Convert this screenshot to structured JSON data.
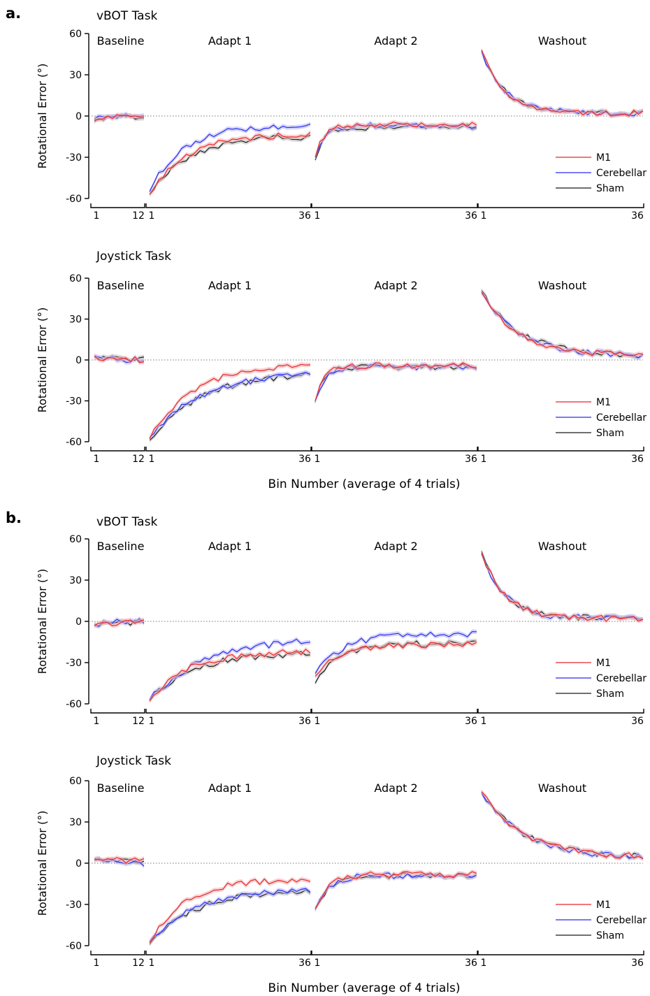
{
  "panels": [
    {
      "letter": "a.",
      "subplots": [
        {
          "title": "vBOT Task",
          "ylabel": "Rotational Error (°)",
          "segments": [
            "Baseline",
            "Adapt 1",
            "Adapt 2",
            "Washout"
          ],
          "legend": [
            "M1",
            "Cerebellar",
            "Sham"
          ]
        },
        {
          "title": "Joystick Task",
          "ylabel": "Rotational Error (°)",
          "segments": [
            "Baseline",
            "Adapt 1",
            "Adapt 2",
            "Washout"
          ],
          "legend": [
            "M1",
            "Cerebellar",
            "Sham"
          ]
        }
      ],
      "xlabel": "Bin Number (average of 4 trials)"
    },
    {
      "letter": "b.",
      "subplots": [
        {
          "title": "vBOT Task",
          "ylabel": "Rotational Error (°)",
          "segments": [
            "Baseline",
            "Adapt 1",
            "Adapt 2",
            "Washout"
          ],
          "legend": [
            "M1",
            "Cerebellar",
            "Sham"
          ]
        },
        {
          "title": "Joystick Task",
          "ylabel": "Rotational Error (°)",
          "segments": [
            "Baseline",
            "Adapt 1",
            "Adapt 2",
            "Washout"
          ],
          "legend": [
            "M1",
            "Cerebellar",
            "Sham"
          ]
        }
      ],
      "xlabel": "Bin Number (average of 4 trials)"
    }
  ],
  "chart_data": [
    {
      "type": "line",
      "title": "vBOT Task",
      "panel": "a.",
      "ylabel": "Rotational Error (°)",
      "ylim": [
        -60,
        60
      ],
      "yticks": [
        -60,
        -30,
        0,
        30,
        60
      ],
      "xlabel": "Bin Number (average of 4 trials)",
      "segments": [
        {
          "label": "Baseline",
          "x_range": [
            1,
            12
          ],
          "x_ticks": [
            1,
            12
          ],
          "series": [
            {
              "name": "M1",
              "y_start": -3,
              "y_end": 0,
              "tau": 2
            },
            {
              "name": "Cerebellar",
              "y_start": -2,
              "y_end": 0,
              "tau": 2
            },
            {
              "name": "Sham",
              "y_start": -4,
              "y_end": 0,
              "tau": 2
            }
          ]
        },
        {
          "label": "Adapt 1",
          "x_range": [
            1,
            36
          ],
          "x_ticks": [
            1,
            36
          ],
          "series": [
            {
              "name": "M1",
              "y_start": -57,
              "y_end": -13,
              "tau": 8
            },
            {
              "name": "Cerebellar",
              "y_start": -55,
              "y_end": -7,
              "tau": 7
            },
            {
              "name": "Sham",
              "y_start": -57,
              "y_end": -15,
              "tau": 8
            }
          ]
        },
        {
          "label": "Adapt 2",
          "x_range": [
            1,
            36
          ],
          "x_ticks": [
            1,
            36
          ],
          "series": [
            {
              "name": "M1",
              "y_start": -30,
              "y_end": -6,
              "tau": 2
            },
            {
              "name": "Cerebellar",
              "y_start": -30,
              "y_end": -7,
              "tau": 2
            },
            {
              "name": "Sham",
              "y_start": -32,
              "y_end": -8,
              "tau": 2
            }
          ]
        },
        {
          "label": "Washout",
          "x_range": [
            1,
            36
          ],
          "x_ticks": [
            1,
            36
          ],
          "series": [
            {
              "name": "M1",
              "y_start": 48,
              "y_end": 2,
              "tau": 5
            },
            {
              "name": "Cerebellar",
              "y_start": 47,
              "y_end": 2,
              "tau": 5
            },
            {
              "name": "Sham",
              "y_start": 48,
              "y_end": 2,
              "tau": 5
            }
          ]
        }
      ]
    },
    {
      "type": "line",
      "title": "Joystick Task",
      "panel": "a.",
      "ylabel": "Rotational Error (°)",
      "ylim": [
        -60,
        60
      ],
      "yticks": [
        -60,
        -30,
        0,
        30,
        60
      ],
      "xlabel": "Bin Number (average of 4 trials)",
      "segments": [
        {
          "label": "Baseline",
          "x_range": [
            1,
            12
          ],
          "x_ticks": [
            1,
            12
          ],
          "series": [
            {
              "name": "M1",
              "y_start": 3,
              "y_end": 0,
              "tau": 3
            },
            {
              "name": "Cerebellar",
              "y_start": 3,
              "y_end": 0,
              "tau": 3
            },
            {
              "name": "Sham",
              "y_start": 2,
              "y_end": 0,
              "tau": 3
            }
          ]
        },
        {
          "label": "Adapt 1",
          "x_range": [
            1,
            36
          ],
          "x_ticks": [
            1,
            36
          ],
          "series": [
            {
              "name": "M1",
              "y_start": -58,
              "y_end": -3,
              "tau": 9
            },
            {
              "name": "Cerebellar",
              "y_start": -57,
              "y_end": -9,
              "tau": 11
            },
            {
              "name": "Sham",
              "y_start": -59,
              "y_end": -9,
              "tau": 11
            }
          ]
        },
        {
          "label": "Adapt 2",
          "x_range": [
            1,
            36
          ],
          "x_ticks": [
            1,
            36
          ],
          "series": [
            {
              "name": "M1",
              "y_start": -30,
              "y_end": -4,
              "tau": 2
            },
            {
              "name": "Cerebellar",
              "y_start": -30,
              "y_end": -5,
              "tau": 2
            },
            {
              "name": "Sham",
              "y_start": -31,
              "y_end": -5,
              "tau": 2
            }
          ]
        },
        {
          "label": "Washout",
          "x_range": [
            1,
            36
          ],
          "x_ticks": [
            1,
            36
          ],
          "series": [
            {
              "name": "M1",
              "y_start": 50,
              "y_end": 3,
              "tau": 8
            },
            {
              "name": "Cerebellar",
              "y_start": 49,
              "y_end": 3,
              "tau": 8
            },
            {
              "name": "Sham",
              "y_start": 51,
              "y_end": 3,
              "tau": 8
            }
          ]
        }
      ]
    },
    {
      "type": "line",
      "title": "vBOT Task",
      "panel": "b.",
      "ylabel": "Rotational Error (°)",
      "ylim": [
        -60,
        60
      ],
      "yticks": [
        -60,
        -30,
        0,
        30,
        60
      ],
      "xlabel": "Bin Number (average of 4 trials)",
      "segments": [
        {
          "label": "Baseline",
          "x_range": [
            1,
            12
          ],
          "x_ticks": [
            1,
            12
          ],
          "series": [
            {
              "name": "M1",
              "y_start": -3,
              "y_end": -1,
              "tau": 3
            },
            {
              "name": "Cerebellar",
              "y_start": -3,
              "y_end": 0,
              "tau": 3
            },
            {
              "name": "Sham",
              "y_start": -2,
              "y_end": -1,
              "tau": 3
            }
          ]
        },
        {
          "label": "Adapt 1",
          "x_range": [
            1,
            36
          ],
          "x_ticks": [
            1,
            36
          ],
          "series": [
            {
              "name": "M1",
              "y_start": -58,
              "y_end": -22,
              "tau": 8
            },
            {
              "name": "Cerebellar",
              "y_start": -57,
              "y_end": -12,
              "tau": 12
            },
            {
              "name": "Sham",
              "y_start": -58,
              "y_end": -23,
              "tau": 9
            }
          ]
        },
        {
          "label": "Adapt 2",
          "x_range": [
            1,
            36
          ],
          "x_ticks": [
            1,
            36
          ],
          "series": [
            {
              "name": "M1",
              "y_start": -40,
              "y_end": -17,
              "tau": 5
            },
            {
              "name": "Cerebellar",
              "y_start": -38,
              "y_end": -9,
              "tau": 6
            },
            {
              "name": "Sham",
              "y_start": -45,
              "y_end": -16,
              "tau": 5
            }
          ]
        },
        {
          "label": "Washout",
          "x_range": [
            1,
            36
          ],
          "x_ticks": [
            1,
            36
          ],
          "series": [
            {
              "name": "M1",
              "y_start": 50,
              "y_end": 2,
              "tau": 5
            },
            {
              "name": "Cerebellar",
              "y_start": 49,
              "y_end": 2,
              "tau": 5
            },
            {
              "name": "Sham",
              "y_start": 51,
              "y_end": 2,
              "tau": 5
            }
          ]
        }
      ]
    },
    {
      "type": "line",
      "title": "Joystick Task",
      "panel": "b.",
      "ylabel": "Rotational Error (°)",
      "ylim": [
        -60,
        60
      ],
      "yticks": [
        -60,
        -30,
        0,
        30,
        60
      ],
      "xlabel": "Bin Number (average of 4 trials)",
      "segments": [
        {
          "label": "Baseline",
          "x_range": [
            1,
            12
          ],
          "x_ticks": [
            1,
            12
          ],
          "series": [
            {
              "name": "M1",
              "y_start": 3,
              "y_end": 2,
              "tau": 3
            },
            {
              "name": "Cerebellar",
              "y_start": 2,
              "y_end": 0,
              "tau": 3
            },
            {
              "name": "Sham",
              "y_start": 3,
              "y_end": 1,
              "tau": 3
            }
          ]
        },
        {
          "label": "Adapt 1",
          "x_range": [
            1,
            36
          ],
          "x_ticks": [
            1,
            36
          ],
          "series": [
            {
              "name": "M1",
              "y_start": -58,
              "y_end": -11,
              "tau": 8
            },
            {
              "name": "Cerebellar",
              "y_start": -57,
              "y_end": -18,
              "tau": 10
            },
            {
              "name": "Sham",
              "y_start": -59,
              "y_end": -19,
              "tau": 10
            }
          ]
        },
        {
          "label": "Adapt 2",
          "x_range": [
            1,
            36
          ],
          "x_ticks": [
            1,
            36
          ],
          "series": [
            {
              "name": "M1",
              "y_start": -33,
              "y_end": -8,
              "tau": 3
            },
            {
              "name": "Cerebellar",
              "y_start": -33,
              "y_end": -9,
              "tau": 3
            },
            {
              "name": "Sham",
              "y_start": -34,
              "y_end": -9,
              "tau": 3
            }
          ]
        },
        {
          "label": "Washout",
          "x_range": [
            1,
            36
          ],
          "x_ticks": [
            1,
            36
          ],
          "series": [
            {
              "name": "M1",
              "y_start": 52,
              "y_end": 4,
              "tau": 9
            },
            {
              "name": "Cerebellar",
              "y_start": 51,
              "y_end": 4,
              "tau": 9
            },
            {
              "name": "Sham",
              "y_start": 52,
              "y_end": 4,
              "tau": 9
            }
          ]
        }
      ]
    }
  ],
  "colors": {
    "M1": "#e8262a",
    "Cerebellar": "#2b2bf0",
    "Sham": "#1a1a1a",
    "M1_band": "#f3b5b5",
    "Cerebellar_band": "#b9b9f5",
    "Sham_band": "#bfbfbf"
  }
}
